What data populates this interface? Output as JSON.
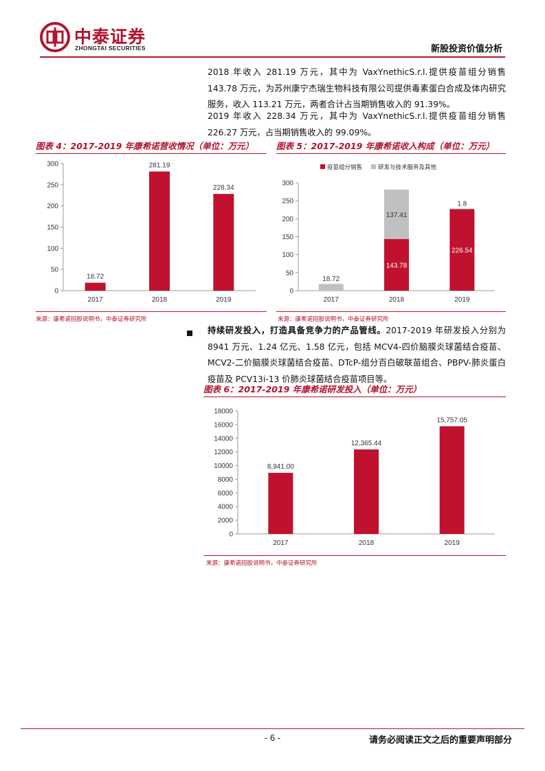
{
  "header": {
    "logo_cn": "中泰证券",
    "logo_en": "ZHONGTAI SECURITIES",
    "report_type": "新股投资价值分析"
  },
  "body": {
    "para1": "2018 年收入 281.19 万元，其中为 VaxYnethicS.r.l.提供疫苗组分销售 143.78 万元，为苏州康宁杰瑞生物科技有限公司提供毒素蛋白合成及体内研究服务，收入 113.21 万元，两者合计占当期销售收入的 91.39%。",
    "para2": "2019 年收入 228.34 万元，其中为 VaxYnethicS.r.l.提供疫苗组分销售 226.27 万元，占当期销售收入的 99.09%。",
    "bullet_lead": "持续研发投入，打造具备竞争力的产品管线。",
    "bullet_text": "2017-2019 年研发投入分别为 8941 万元、1.24 亿元、1.58 亿元，包括 MCV4-四价脑膜炎球菌结合疫苗、MCV2-二价脑膜炎球菌结合疫苗、DTcP-组分百白破联苗组合、PBPV-肺炎蛋白疫苗及 PCV13i-13 价肺炎球菌结合疫苗项目等。"
  },
  "figures": {
    "fig4": {
      "title": "图表 4：2017-2019 年康希诺营收情况（单位：万元）",
      "source": "来源：康希诺招股说明书，中泰证券研究所"
    },
    "fig5": {
      "title": "图表 5：2017-2019 年康希诺收入构成（单位：万元）",
      "source": "来源：康希诺招股说明书，中泰证券研究所"
    },
    "fig6": {
      "title": "图表 6：2017-2019 年康希诺研发投入（单位：万元）",
      "source": "来源：康希诺招股说明书，中泰证券研究所"
    }
  },
  "chart_data": [
    {
      "type": "bar",
      "title": "图表 4：2017-2019 年康希诺营收情况（单位：万元）",
      "categories": [
        "2017",
        "2018",
        "2019"
      ],
      "values": [
        18.72,
        281.19,
        228.34
      ],
      "labels": [
        "18.72",
        "281.19",
        "228.34"
      ],
      "ylim": [
        0,
        300
      ],
      "yticks": [
        "0",
        "50",
        "100",
        "150",
        "200",
        "250",
        "300"
      ],
      "color": "#c0112f",
      "grid": false
    },
    {
      "type": "bar",
      "stacked": true,
      "title": "图表 5：2017-2019 年康希诺收入构成（单位：万元）",
      "categories": [
        "2017",
        "2018",
        "2019"
      ],
      "series": [
        {
          "name": "疫苗组分销售",
          "values": [
            0,
            143.78,
            226.54
          ],
          "labels": [
            "",
            "143.78",
            "226.54"
          ],
          "color": "#c0112f"
        },
        {
          "name": "研发与技术服务及其他",
          "values": [
            18.72,
            137.41,
            1.8
          ],
          "labels": [
            "18.72",
            "137.41",
            "1.8"
          ],
          "color": "#c0c0c0"
        }
      ],
      "ylim": [
        0,
        300
      ],
      "yticks": [
        "0",
        "50",
        "100",
        "150",
        "200",
        "250",
        "300"
      ],
      "legend": "top-left",
      "grid": false
    },
    {
      "type": "bar",
      "title": "图表 6：2017-2019 年康希诺研发投入（单位：万元）",
      "categories": [
        "2017",
        "2018",
        "2019"
      ],
      "values": [
        8941.0,
        12365.44,
        15757.05
      ],
      "labels": [
        "8,941.00",
        "12,365.44",
        "15,757.05"
      ],
      "ylim": [
        0,
        18000
      ],
      "yticks": [
        "0",
        "2000",
        "4000",
        "6000",
        "8000",
        "10000",
        "12000",
        "14000",
        "16000",
        "18000"
      ],
      "color": "#c0112f",
      "grid": false
    }
  ],
  "footer": {
    "page": "- 6 -",
    "note": "请务必阅读正文之后的重要声明部分"
  }
}
